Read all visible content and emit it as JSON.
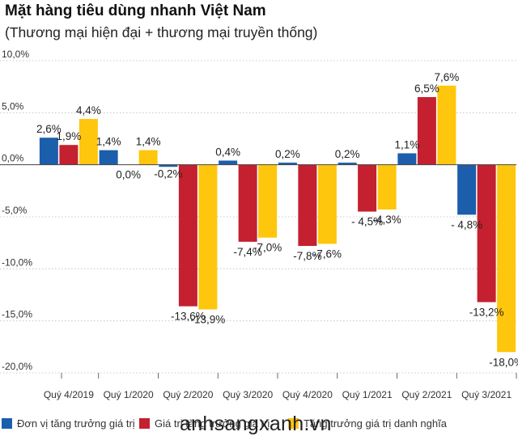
{
  "title": "Mặt hàng tiêu dùng nhanh Việt Nam",
  "subtitle": "(Thương mại hiện đại + thương mại truyền thống)",
  "watermark": "anhsangxanh.vn",
  "colors": {
    "blue": "#1b5eab",
    "red": "#c4202f",
    "yellow": "#fec60c",
    "grid": "#bbbbbb",
    "axis": "#444444"
  },
  "chart_data": {
    "type": "bar",
    "categories": [
      "Quý 4/2019",
      "Quý 1/2020",
      "Quý 2/2020",
      "Quý 3/2020",
      "Quý 4/2020",
      "Quý 1/2021",
      "Quý 2/2021",
      "Quý 3/2021"
    ],
    "yticks": [
      "10,0%",
      "5,0%",
      "0,0%",
      "-5,0%",
      "-10,0%",
      "-15,0%",
      "-20,0%"
    ],
    "ylim": [
      -20,
      10
    ],
    "grid": true,
    "legend_position": "bottom",
    "series": [
      {
        "name": "Đơn vị tăng trưởng giá trị",
        "color": "#1b5eab",
        "values": [
          2.6,
          1.4,
          -0.2,
          0.4,
          0.2,
          0.2,
          1.1,
          -4.8
        ],
        "labels": [
          "2,6%",
          "1,4%",
          "-0,2%",
          "0,4%",
          "0,2%",
          "0,2%",
          "1,1%",
          "- 4,8%"
        ]
      },
      {
        "name": "Giá trị tăng trưởng giá trị",
        "color": "#c4202f",
        "values": [
          1.9,
          0.0,
          -13.6,
          -7.4,
          -7.8,
          -4.5,
          6.5,
          -13.2
        ],
        "labels": [
          "1,9%",
          "0,0%",
          "-13,6%",
          "-7,4%",
          "-7,8%",
          "- 4,5%",
          "6,5%",
          "-13,2%"
        ]
      },
      {
        "name": "Tăng trưởng giá trị danh nghĩa",
        "color": "#fec60c",
        "values": [
          4.4,
          1.4,
          -13.9,
          -7.0,
          -7.6,
          -4.3,
          7.6,
          -18.0
        ],
        "labels": [
          "4,4%",
          "1,4%",
          "-13,9%",
          "-7,0%",
          "-7,6%",
          "-4,3%",
          "7,6%",
          "-18,0%"
        ]
      }
    ]
  }
}
